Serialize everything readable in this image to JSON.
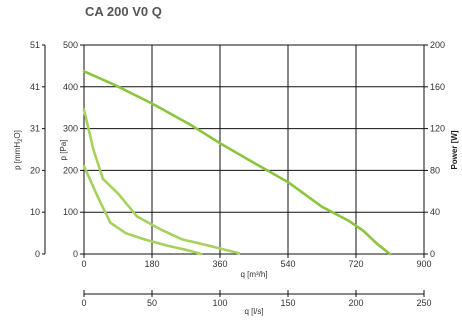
{
  "chart_data": {
    "type": "line",
    "title": "CA 200 V0 Q",
    "x_axis": {
      "label": "q [m³/h]",
      "range": [
        0,
        900
      ],
      "ticks": [
        "0",
        "180",
        "360",
        "540",
        "720",
        "900"
      ],
      "tick_values": [
        0,
        180,
        360,
        540,
        720,
        900
      ]
    },
    "x2_axis": {
      "label": "q [l/s]",
      "range": [
        0,
        250
      ],
      "ticks": [
        "0",
        "50",
        "100",
        "150",
        "200",
        "250"
      ],
      "tick_values": [
        0,
        50,
        100,
        150,
        200,
        250
      ]
    },
    "y_axis_pa": {
      "label": "p [Pa]",
      "range": [
        0,
        500
      ],
      "ticks": [
        "0",
        "100",
        "200",
        "300",
        "400",
        "500"
      ],
      "tick_values": [
        0,
        100,
        200,
        300,
        400,
        500
      ]
    },
    "y_axis_mmh2o": {
      "label_main": "p  [mmH",
      "label_sub": "2",
      "label_end": "O]",
      "range": [
        0,
        51
      ],
      "ticks": [
        "0",
        "10",
        "20",
        "31",
        "41",
        "51"
      ],
      "tick_values": [
        0,
        10.2,
        20.4,
        30.6,
        40.8,
        51
      ]
    },
    "y_axis_power": {
      "label": "Power [W]",
      "range": [
        0,
        200
      ],
      "ticks": [
        "0",
        "40",
        "80",
        "120",
        "160",
        "200"
      ],
      "tick_values": [
        0,
        40,
        80,
        120,
        160,
        200
      ]
    },
    "grid": true,
    "series": [
      {
        "color": "#8bc53f",
        "x": [
          0,
          80,
          180,
          280,
          360,
          450,
          540,
          630,
          700,
          740,
          775,
          810
        ],
        "y": [
          437,
          405,
          360,
          310,
          265,
          218,
          172,
          113,
          80,
          55,
          25,
          0
        ]
      },
      {
        "color": "#a6d15d",
        "x": [
          0,
          25,
          50,
          90,
          140,
          200,
          260,
          330,
          410
        ],
        "y": [
          345,
          250,
          180,
          145,
          90,
          60,
          35,
          20,
          2
        ]
      },
      {
        "color": "#a6d15d",
        "x": [
          0,
          40,
          70,
          110,
          160,
          220,
          280,
          310
        ],
        "y": [
          210,
          130,
          75,
          50,
          35,
          20,
          8,
          0
        ]
      }
    ]
  }
}
